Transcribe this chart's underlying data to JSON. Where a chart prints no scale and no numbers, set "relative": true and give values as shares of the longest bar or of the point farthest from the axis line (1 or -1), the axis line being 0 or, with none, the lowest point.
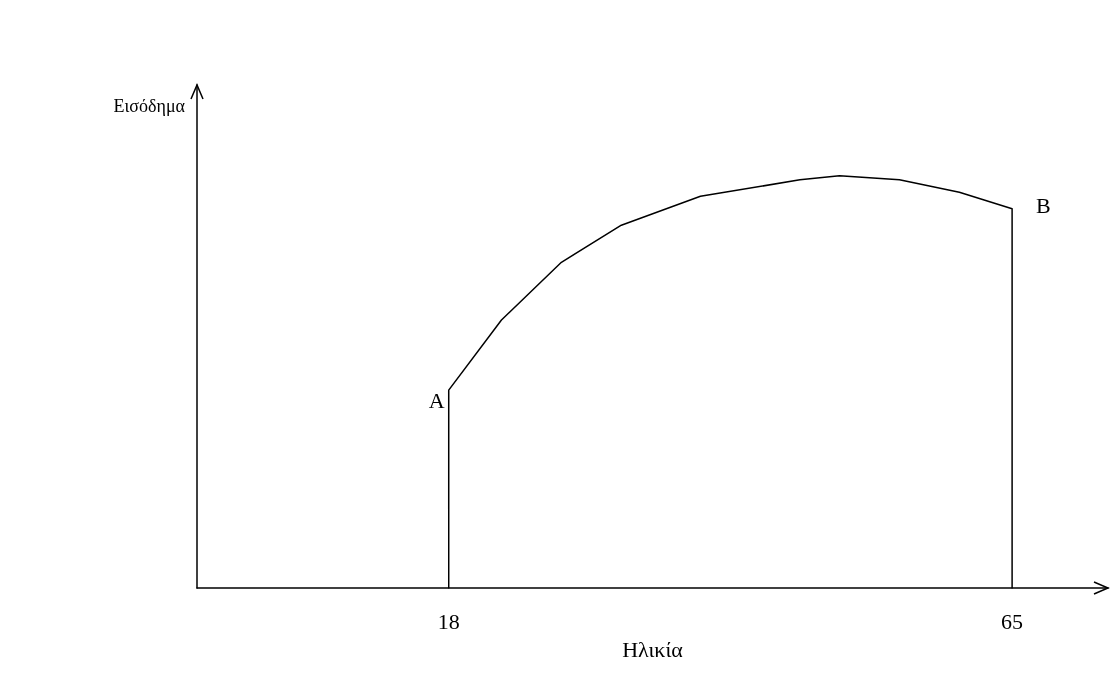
{
  "chart_data": {
    "type": "line",
    "relative": true,
    "xlabel": "Ηλικία",
    "ylabel": "Εισόδημα",
    "x": [
      18,
      18,
      22.4,
      27.4,
      32.4,
      39,
      47.3,
      50.6,
      55.6,
      60.6,
      65,
      65
    ],
    "values": [
      0,
      0.48,
      0.65,
      0.79,
      0.88,
      0.95,
      0.99,
      1,
      0.99,
      0.96,
      0.92,
      0
    ],
    "color": "#000000",
    "marker": "none",
    "line_style": "solid",
    "xlim": [
      -3,
      73
    ],
    "xticks": [
      18,
      65
    ],
    "annotations": [
      {
        "text": "A",
        "x": 18,
        "y": 0.48
      },
      {
        "text": "B",
        "x": 65,
        "y": 0.92
      }
    ]
  }
}
